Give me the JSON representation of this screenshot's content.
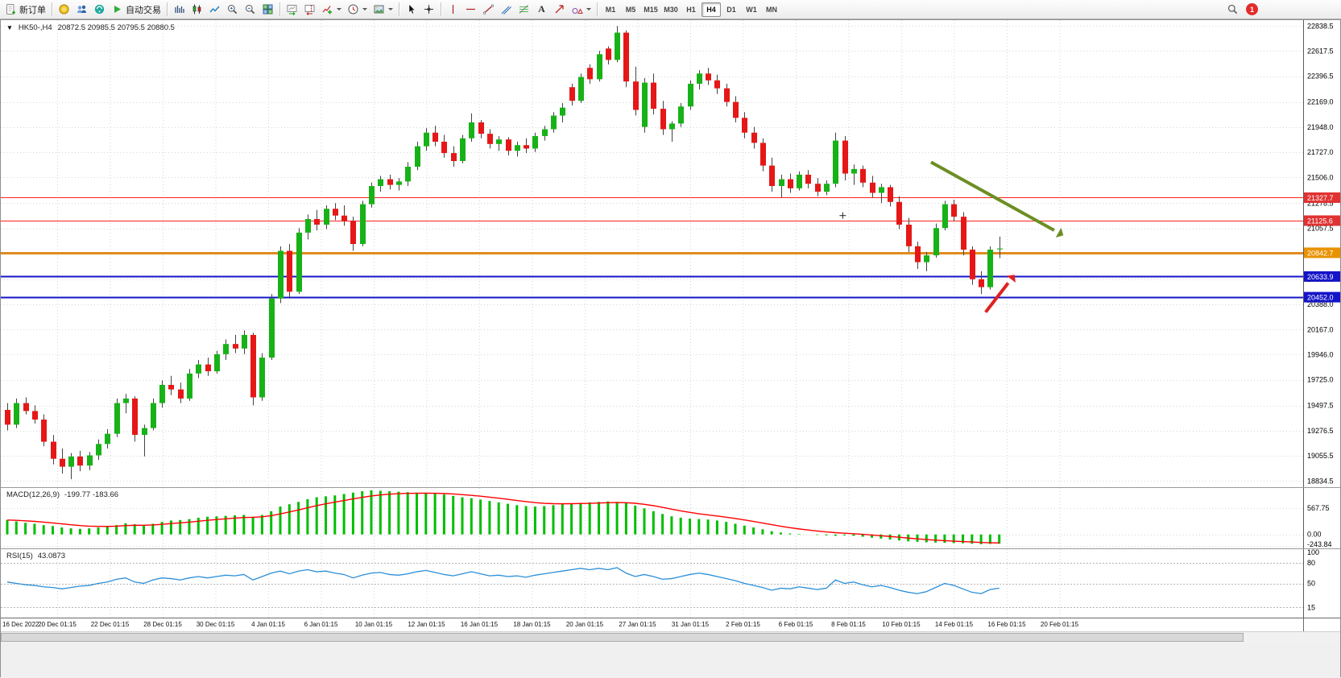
{
  "toolbar": {
    "new_order": "新订单",
    "algo_trading": "自动交易",
    "text_tool": "A",
    "timeframe_labels": [
      "M1",
      "M5",
      "M15",
      "M30",
      "H1",
      "H4",
      "D1",
      "W1",
      "MN"
    ],
    "active_timeframe": "H4",
    "notification_count": "1",
    "icon_names": [
      "new-order-icon",
      "gold-coin-icon",
      "community-icon",
      "help-icon",
      "algo-play-icon",
      "bar-chart-icon",
      "candlestick-chart-icon",
      "line-chart-icon",
      "zoom-in-icon",
      "zoom-out-icon",
      "tile-windows-icon",
      "autoscroll-icon",
      "chart-shift-icon",
      "indicators-icon",
      "periods-icon",
      "templates-icon",
      "cursor-icon",
      "crosshair-icon",
      "vertical-line-icon",
      "horizontal-line-icon",
      "trend-line-icon",
      "channel-icon",
      "fibonacci-icon",
      "text-icon",
      "arrow-label-icon",
      "shapes-icon",
      "search-icon",
      "notification-badge"
    ]
  },
  "icons": {
    "collapse_marker": "▼"
  },
  "chart": {
    "header": {
      "symbol_period": "HK50-,H4",
      "ohlc": "20872.5 20985.5 20795.5 20880.5"
    },
    "price_axis": {
      "labels": [
        "22838.5",
        "22617.5",
        "22396.5",
        "22169.0",
        "21948.0",
        "21727.0",
        "21506.0",
        "21278.5",
        "21057.5",
        "20836.5",
        "20609.5",
        "20388.0",
        "20167.0",
        "19946.0",
        "19725.0",
        "19497.5",
        "19276.5",
        "19055.5",
        "18834.5"
      ],
      "tags": [
        {
          "label": "21327.7",
          "price": 21327.7,
          "bg": "#e03232"
        },
        {
          "label": "21125.6",
          "price": 21125.6,
          "bg": "#e03232"
        },
        {
          "label": "20842.7",
          "price": 20842.7,
          "bg": "#e89200"
        },
        {
          "label": "20633.9",
          "price": 20633.9,
          "bg": "#1414c8"
        },
        {
          "label": "20452.0",
          "price": 20452.0,
          "bg": "#1414c8"
        }
      ]
    },
    "time_axis": {
      "labels": [
        "16 Dec 2022",
        "20 Dec 01:15",
        "22 Dec 01:15",
        "28 Dec 01:15",
        "30 Dec 01:15",
        "4 Jan 01:15",
        "6 Jan 01:15",
        "10 Jan 01:15",
        "12 Jan 01:15",
        "16 Jan 01:15",
        "18 Jan 01:15",
        "20 Jan 01:15",
        "27 Jan 01:15",
        "31 Jan 01:15",
        "2 Feb 01:15",
        "6 Feb 01:15",
        "8 Feb 01:15",
        "10 Feb 01:15",
        "14 Feb 01:15",
        "16 Feb 01:15",
        "20 Feb 01:15"
      ]
    },
    "macd": {
      "label": "MACD(12,26,9)",
      "values": "-199.77 -183.66",
      "axis_labels": [
        "567.75",
        "0.00",
        "-243.84"
      ]
    },
    "rsi": {
      "label": "RSI(15)",
      "value": "43.0873",
      "axis_labels": [
        "100",
        "80",
        "50",
        "15"
      ]
    }
  },
  "chart_data": {
    "type": "candlestick",
    "symbol": "HK50-",
    "timeframe": "H4",
    "ohlc_display": {
      "open": 20872.5,
      "high": 20985.5,
      "low": 20795.5,
      "close": 20880.5
    },
    "y_range": [
      18780,
      22890
    ],
    "colors": {
      "up": "#17b217",
      "down": "#e61717",
      "wick": "#444444"
    },
    "candles": [
      [
        19460,
        19520,
        19280,
        19330
      ],
      [
        19330,
        19560,
        19300,
        19520
      ],
      [
        19520,
        19570,
        19420,
        19450
      ],
      [
        19450,
        19500,
        19340,
        19375
      ],
      [
        19375,
        19420,
        19140,
        19180
      ],
      [
        19180,
        19240,
        18980,
        19030
      ],
      [
        19030,
        19120,
        18900,
        18960
      ],
      [
        18960,
        19080,
        18850,
        19050
      ],
      [
        19050,
        19100,
        18920,
        18970
      ],
      [
        18970,
        19090,
        18930,
        19060
      ],
      [
        19060,
        19200,
        19020,
        19160
      ],
      [
        19160,
        19290,
        19120,
        19250
      ],
      [
        19250,
        19560,
        19220,
        19520
      ],
      [
        19520,
        19600,
        19430,
        19560
      ],
      [
        19560,
        19580,
        19180,
        19240
      ],
      [
        19240,
        19330,
        19050,
        19300
      ],
      [
        19300,
        19560,
        19280,
        19520
      ],
      [
        19520,
        19720,
        19480,
        19680
      ],
      [
        19680,
        19760,
        19590,
        19640
      ],
      [
        19640,
        19700,
        19520,
        19560
      ],
      [
        19560,
        19820,
        19540,
        19780
      ],
      [
        19780,
        19900,
        19740,
        19860
      ],
      [
        19860,
        19920,
        19760,
        19800
      ],
      [
        19800,
        19980,
        19780,
        19950
      ],
      [
        19950,
        20080,
        19900,
        20040
      ],
      [
        20040,
        20120,
        19960,
        20000
      ],
      [
        20000,
        20160,
        19950,
        20120
      ],
      [
        20120,
        20140,
        19500,
        19570
      ],
      [
        19570,
        19960,
        19540,
        19920
      ],
      [
        19920,
        20480,
        19900,
        20440
      ],
      [
        20440,
        20900,
        20400,
        20860
      ],
      [
        20860,
        20920,
        20440,
        20500
      ],
      [
        20500,
        21060,
        20480,
        21020
      ],
      [
        21020,
        21180,
        20960,
        21140
      ],
      [
        21140,
        21220,
        21040,
        21090
      ],
      [
        21090,
        21260,
        21050,
        21230
      ],
      [
        21230,
        21280,
        21130,
        21170
      ],
      [
        21170,
        21260,
        21080,
        21120
      ],
      [
        21120,
        21160,
        20860,
        20920
      ],
      [
        20920,
        21300,
        20900,
        21270
      ],
      [
        21270,
        21460,
        21240,
        21430
      ],
      [
        21430,
        21520,
        21380,
        21490
      ],
      [
        21490,
        21530,
        21400,
        21440
      ],
      [
        21440,
        21500,
        21390,
        21470
      ],
      [
        21470,
        21640,
        21430,
        21600
      ],
      [
        21600,
        21820,
        21570,
        21780
      ],
      [
        21780,
        21940,
        21740,
        21900
      ],
      [
        21900,
        21960,
        21780,
        21820
      ],
      [
        21820,
        21880,
        21680,
        21720
      ],
      [
        21720,
        21780,
        21600,
        21650
      ],
      [
        21650,
        21880,
        21630,
        21850
      ],
      [
        21850,
        22070,
        21820,
        21990
      ],
      [
        21990,
        22010,
        21850,
        21890
      ],
      [
        21890,
        21930,
        21760,
        21800
      ],
      [
        21800,
        21870,
        21740,
        21840
      ],
      [
        21840,
        21860,
        21700,
        21740
      ],
      [
        21740,
        21820,
        21690,
        21790
      ],
      [
        21790,
        21850,
        21720,
        21760
      ],
      [
        21760,
        21900,
        21730,
        21870
      ],
      [
        21870,
        21960,
        21830,
        21930
      ],
      [
        21930,
        22080,
        21900,
        22050
      ],
      [
        22050,
        22160,
        21990,
        22120
      ],
      [
        22300,
        22330,
        22140,
        22180
      ],
      [
        22180,
        22420,
        22160,
        22390
      ],
      [
        22470,
        22500,
        22330,
        22370
      ],
      [
        22370,
        22620,
        22350,
        22590
      ],
      [
        22640,
        22660,
        22500,
        22540
      ],
      [
        22540,
        22838,
        22520,
        22780
      ],
      [
        22780,
        22800,
        22300,
        22350
      ],
      [
        22350,
        22480,
        22050,
        22100
      ],
      [
        21950,
        22380,
        21900,
        22340
      ],
      [
        22340,
        22420,
        22060,
        22110
      ],
      [
        22110,
        22180,
        21880,
        21930
      ],
      [
        21930,
        22000,
        21820,
        21980
      ],
      [
        21980,
        22160,
        21950,
        22130
      ],
      [
        22130,
        22360,
        22100,
        22330
      ],
      [
        22330,
        22450,
        22280,
        22420
      ],
      [
        22420,
        22470,
        22320,
        22360
      ],
      [
        22360,
        22410,
        22240,
        22290
      ],
      [
        22290,
        22330,
        22130,
        22170
      ],
      [
        22170,
        22220,
        21990,
        22030
      ],
      [
        22030,
        22080,
        21850,
        21900
      ],
      [
        21900,
        21950,
        21760,
        21810
      ],
      [
        21810,
        21850,
        21560,
        21610
      ],
      [
        21610,
        21680,
        21380,
        21430
      ],
      [
        21430,
        21530,
        21330,
        21490
      ],
      [
        21490,
        21540,
        21370,
        21410
      ],
      [
        21410,
        21560,
        21390,
        21530
      ],
      [
        21530,
        21570,
        21410,
        21450
      ],
      [
        21450,
        21500,
        21340,
        21380
      ],
      [
        21380,
        21480,
        21350,
        21450
      ],
      [
        21450,
        21900,
        21420,
        21830
      ],
      [
        21830,
        21870,
        21480,
        21540
      ],
      [
        21540,
        21620,
        21440,
        21580
      ],
      [
        21580,
        21610,
        21420,
        21460
      ],
      [
        21460,
        21520,
        21330,
        21370
      ],
      [
        21370,
        21450,
        21280,
        21420
      ],
      [
        21420,
        21440,
        21250,
        21290
      ],
      [
        21290,
        21340,
        21050,
        21090
      ],
      [
        21090,
        21150,
        20850,
        20900
      ],
      [
        20900,
        20940,
        20700,
        20760
      ],
      [
        20760,
        20850,
        20680,
        20820
      ],
      [
        20820,
        21100,
        20800,
        21060
      ],
      [
        21060,
        21300,
        21040,
        21270
      ],
      [
        21270,
        21310,
        21120,
        21160
      ],
      [
        21160,
        21200,
        20820,
        20870
      ],
      [
        20870,
        20900,
        20560,
        20610
      ],
      [
        20610,
        20680,
        20480,
        20540
      ],
      [
        20540,
        20900,
        20520,
        20870
      ],
      [
        20872.5,
        20985.5,
        20795.5,
        20880.5
      ]
    ],
    "horizontal_lines": [
      {
        "name": "resistance-line-upper",
        "price": 21327.7,
        "color": "#ff2020",
        "width": 1
      },
      {
        "name": "resistance-line-lower",
        "price": 21125.6,
        "color": "#ff2020",
        "width": 1
      },
      {
        "name": "pivot-line-orange",
        "price": 20842.7,
        "color": "#e08a1e",
        "width": 3
      },
      {
        "name": "support-line-upper",
        "price": 20633.9,
        "color": "#1414c8",
        "width": 2
      },
      {
        "name": "support-line-lower",
        "price": 20452.0,
        "color": "#1414c8",
        "width": 2
      }
    ],
    "annotations": {
      "arrows": [
        {
          "name": "downtrend-arrow",
          "color": "#6b8e23",
          "from": {
            "i": 101.5,
            "price": 21640
          },
          "to": {
            "i": 115.5,
            "price": 21020
          }
        },
        {
          "name": "bounce-arrow",
          "color": "#e02020",
          "from": {
            "i": 107.5,
            "price": 20320
          },
          "to": {
            "i": 110.3,
            "price": 20610
          }
        }
      ],
      "markers": [
        {
          "name": "cross-marker",
          "i": 91.8,
          "price": 21170
        }
      ]
    },
    "indicators": [
      {
        "name": "MACD",
        "params": "12,26,9",
        "macd_last": -199.77,
        "signal_last": -183.66,
        "range": [
          -300,
          1000
        ],
        "colors": {
          "histogram": "#00be00",
          "signal": "#ff0000"
        },
        "histogram": [
          310,
          280,
          250,
          230,
          200,
          180,
          150,
          130,
          120,
          130,
          150,
          170,
          200,
          240,
          220,
          200,
          230,
          270,
          300,
          310,
          330,
          360,
          380,
          390,
          400,
          410,
          420,
          380,
          420,
          500,
          600,
          650,
          700,
          760,
          800,
          820,
          840,
          870,
          900,
          930,
          950,
          940,
          930,
          920,
          910,
          900,
          890,
          880,
          860,
          830,
          800,
          780,
          750,
          720,
          690,
          660,
          630,
          610,
          600,
          610,
          630,
          650,
          670,
          680,
          690,
          700,
          710,
          700,
          670,
          620,
          560,
          500,
          440,
          390,
          360,
          340,
          330,
          320,
          300,
          270,
          230,
          190,
          150,
          110,
          70,
          40,
          20,
          10,
          0,
          -10,
          -20,
          -30,
          -20,
          -30,
          -50,
          -70,
          -90,
          -110,
          -130,
          -150,
          -160,
          -170,
          -175,
          -180,
          -185,
          -190,
          -200,
          -210,
          -205,
          -199.77
        ]
      },
      {
        "name": "RSI",
        "params": "15",
        "last": 43.0873,
        "range": [
          0,
          100
        ],
        "levels": [
          15,
          50,
          80
        ],
        "color": "#2b8fd9",
        "values": [
          52,
          50,
          48,
          47,
          45,
          44,
          42,
          44,
          46,
          47,
          50,
          52,
          56,
          58,
          52,
          50,
          55,
          58,
          57,
          55,
          58,
          60,
          58,
          60,
          62,
          61,
          63,
          55,
          60,
          65,
          68,
          64,
          68,
          70,
          67,
          68,
          65,
          63,
          58,
          62,
          65,
          66,
          63,
          62,
          64,
          67,
          69,
          66,
          63,
          61,
          64,
          67,
          64,
          61,
          62,
          60,
          61,
          59,
          62,
          64,
          66,
          68,
          70,
          72,
          70,
          72,
          70,
          73,
          65,
          60,
          63,
          60,
          56,
          57,
          60,
          63,
          65,
          63,
          60,
          57,
          54,
          50,
          47,
          44,
          40,
          43,
          42,
          45,
          43,
          41,
          43,
          55,
          50,
          52,
          48,
          45,
          47,
          44,
          40,
          37,
          35,
          38,
          44,
          50,
          47,
          42,
          37,
          35,
          41,
          43.09
        ]
      }
    ]
  }
}
